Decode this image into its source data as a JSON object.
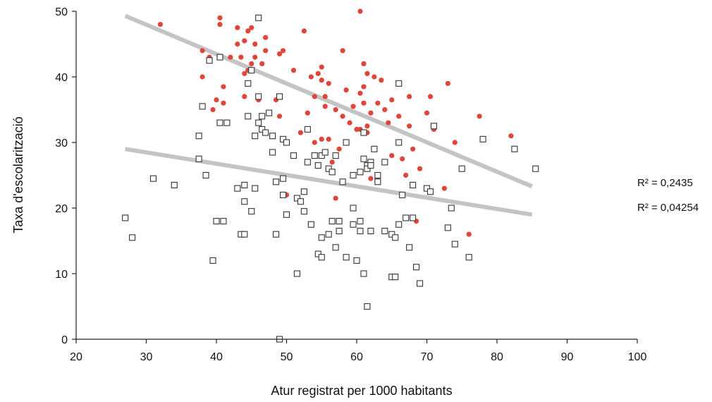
{
  "chart_data": {
    "type": "scatter",
    "title": "",
    "xlabel": "Atur registrat per 1000 habitants",
    "ylabel": "Taxa d'escolarització",
    "xlim": [
      20,
      100
    ],
    "ylim": [
      0,
      50
    ],
    "x_ticks": [
      "20",
      "30",
      "40",
      "50",
      "60",
      "70",
      "80",
      "90",
      "100"
    ],
    "y_ticks": [
      "0",
      "10",
      "20",
      "30",
      "40",
      "50"
    ],
    "grid": false,
    "legend": "none",
    "r2_labels": [
      "R² = 0,2435",
      "R² = 0,04254"
    ],
    "colors": {
      "filled": "#e0453a",
      "open_stroke": "#333333",
      "trend": "#c4c4c4",
      "axis": "#222222"
    },
    "series": [
      {
        "marker": "filled-circle",
        "points": [
          [
            32,
            48
          ],
          [
            38,
            44
          ],
          [
            38,
            40
          ],
          [
            39,
            43
          ],
          [
            39.5,
            35
          ],
          [
            40,
            36.5
          ],
          [
            40.5,
            49
          ],
          [
            40.5,
            48
          ],
          [
            41,
            36
          ],
          [
            41,
            38.5
          ],
          [
            42,
            43
          ],
          [
            43,
            47.5
          ],
          [
            43,
            45
          ],
          [
            43.5,
            43
          ],
          [
            44,
            45.5
          ],
          [
            44,
            37
          ],
          [
            44,
            40.5
          ],
          [
            44.5,
            41
          ],
          [
            44.5,
            47
          ],
          [
            45,
            47.5
          ],
          [
            45,
            42
          ],
          [
            45.5,
            45
          ],
          [
            45.5,
            43
          ],
          [
            46,
            36.5
          ],
          [
            46.5,
            42
          ],
          [
            47,
            46
          ],
          [
            47,
            44
          ],
          [
            48.5,
            36.5
          ],
          [
            49,
            34
          ],
          [
            49,
            43.5
          ],
          [
            49.5,
            44
          ],
          [
            50,
            22
          ],
          [
            51,
            41
          ],
          [
            52,
            31.5
          ],
          [
            52.5,
            47
          ],
          [
            53,
            34.5
          ],
          [
            53.5,
            40
          ],
          [
            54,
            37
          ],
          [
            54,
            30
          ],
          [
            54.5,
            40.5
          ],
          [
            55,
            39.5
          ],
          [
            55,
            41.5
          ],
          [
            55,
            30.5
          ],
          [
            55.5,
            37
          ],
          [
            55.5,
            35.5
          ],
          [
            56,
            39
          ],
          [
            56,
            30.5
          ],
          [
            56.5,
            27
          ],
          [
            57,
            21.5
          ],
          [
            57,
            35
          ],
          [
            57.5,
            29
          ],
          [
            58,
            34
          ],
          [
            58,
            44
          ],
          [
            58.5,
            38
          ],
          [
            59,
            33
          ],
          [
            59.5,
            35.5
          ],
          [
            60,
            32
          ],
          [
            60.5,
            32
          ],
          [
            60.5,
            37.5
          ],
          [
            60.5,
            50
          ],
          [
            61,
            42
          ],
          [
            61,
            38.5
          ],
          [
            61,
            36
          ],
          [
            61.5,
            40.5
          ],
          [
            61.5,
            32.5
          ],
          [
            61.5,
            31.5
          ],
          [
            62,
            34.5
          ],
          [
            62,
            24.5
          ],
          [
            62.5,
            40
          ],
          [
            63,
            36
          ],
          [
            63.5,
            39.5
          ],
          [
            64,
            35
          ],
          [
            64.5,
            33
          ],
          [
            65,
            36.5
          ],
          [
            65,
            28
          ],
          [
            66,
            34
          ],
          [
            66.5,
            27.5
          ],
          [
            67,
            25
          ],
          [
            67.5,
            37
          ],
          [
            67.5,
            32.5
          ],
          [
            68,
            29
          ],
          [
            68.5,
            18
          ],
          [
            69,
            26
          ],
          [
            70,
            34.5
          ],
          [
            70.5,
            37
          ],
          [
            71,
            32
          ],
          [
            72.5,
            23
          ],
          [
            73,
            39
          ],
          [
            74,
            30
          ],
          [
            76,
            16
          ],
          [
            77.5,
            34
          ],
          [
            82,
            31
          ]
        ]
      },
      {
        "marker": "open-square",
        "points": [
          [
            27,
            18.5
          ],
          [
            28,
            15.5
          ],
          [
            31,
            24.5
          ],
          [
            34,
            23.5
          ],
          [
            37.5,
            31
          ],
          [
            37.5,
            27.5
          ],
          [
            38,
            35.5
          ],
          [
            38.5,
            25
          ],
          [
            39,
            42.5
          ],
          [
            39.5,
            12
          ],
          [
            40,
            18
          ],
          [
            40.5,
            43
          ],
          [
            40.5,
            33
          ],
          [
            41,
            18
          ],
          [
            41.5,
            33
          ],
          [
            43,
            23
          ],
          [
            43.5,
            16
          ],
          [
            44,
            16
          ],
          [
            44,
            21
          ],
          [
            44,
            23.5
          ],
          [
            44.5,
            39
          ],
          [
            44.5,
            34
          ],
          [
            45,
            41
          ],
          [
            45,
            19.5
          ],
          [
            45.5,
            23
          ],
          [
            45.5,
            31
          ],
          [
            46,
            37
          ],
          [
            46,
            49
          ],
          [
            46,
            33
          ],
          [
            46.5,
            32
          ],
          [
            46.5,
            34
          ],
          [
            47,
            31.5
          ],
          [
            47.5,
            34.5
          ],
          [
            48,
            31
          ],
          [
            48,
            28.5
          ],
          [
            48.5,
            16
          ],
          [
            48.5,
            24
          ],
          [
            49,
            0
          ],
          [
            49,
            37
          ],
          [
            49.5,
            24.5
          ],
          [
            49.5,
            30.5
          ],
          [
            49.5,
            22
          ],
          [
            50,
            19
          ],
          [
            50,
            30
          ],
          [
            51,
            28
          ],
          [
            51.5,
            21.5
          ],
          [
            51.5,
            10
          ],
          [
            52,
            21
          ],
          [
            52.5,
            22.5
          ],
          [
            52.5,
            19.5
          ],
          [
            53,
            27
          ],
          [
            53,
            32
          ],
          [
            53.5,
            17.5
          ],
          [
            54,
            28
          ],
          [
            54.5,
            13
          ],
          [
            54.5,
            26.5
          ],
          [
            55,
            28
          ],
          [
            55,
            15.5
          ],
          [
            55,
            12.5
          ],
          [
            55.5,
            28.5
          ],
          [
            56,
            26
          ],
          [
            56,
            16
          ],
          [
            56.5,
            25.5
          ],
          [
            56.5,
            18
          ],
          [
            57,
            28
          ],
          [
            57,
            14
          ],
          [
            57.5,
            16.5
          ],
          [
            57.5,
            18
          ],
          [
            58,
            24
          ],
          [
            58.5,
            30
          ],
          [
            58.5,
            12.5
          ],
          [
            59.5,
            20
          ],
          [
            59.5,
            17.5
          ],
          [
            59.5,
            25
          ],
          [
            60,
            12
          ],
          [
            60.5,
            18
          ],
          [
            60.5,
            16.5
          ],
          [
            60.5,
            25.5
          ],
          [
            61,
            27.5
          ],
          [
            61,
            10
          ],
          [
            61,
            31.5
          ],
          [
            61.5,
            26.5
          ],
          [
            61.5,
            26
          ],
          [
            61.5,
            5
          ],
          [
            62,
            27
          ],
          [
            62,
            16.5
          ],
          [
            62,
            26.5
          ],
          [
            62.5,
            29
          ],
          [
            63,
            25
          ],
          [
            63,
            24
          ],
          [
            64,
            27
          ],
          [
            64,
            16.5
          ],
          [
            65,
            9.5
          ],
          [
            65,
            16
          ],
          [
            65.5,
            15.5
          ],
          [
            65.5,
            9.5
          ],
          [
            66,
            17.5
          ],
          [
            66,
            39
          ],
          [
            66,
            30
          ],
          [
            66.5,
            22
          ],
          [
            67,
            18.5
          ],
          [
            67.5,
            14
          ],
          [
            68,
            23.5
          ],
          [
            68,
            18.5
          ],
          [
            68.5,
            11
          ],
          [
            69,
            8.5
          ],
          [
            70,
            23
          ],
          [
            70.5,
            22.5
          ],
          [
            71,
            32.5
          ],
          [
            73,
            17
          ],
          [
            73.5,
            20
          ],
          [
            74,
            14.5
          ],
          [
            75,
            26
          ],
          [
            76,
            12.5
          ],
          [
            78,
            30.5
          ],
          [
            82.5,
            29
          ],
          [
            85.5,
            26
          ]
        ]
      }
    ],
    "trendlines": [
      {
        "from": [
          27,
          49.3
        ],
        "to": [
          85,
          23.3
        ]
      },
      {
        "from": [
          27,
          29
        ],
        "to": [
          85,
          19
        ]
      }
    ]
  }
}
